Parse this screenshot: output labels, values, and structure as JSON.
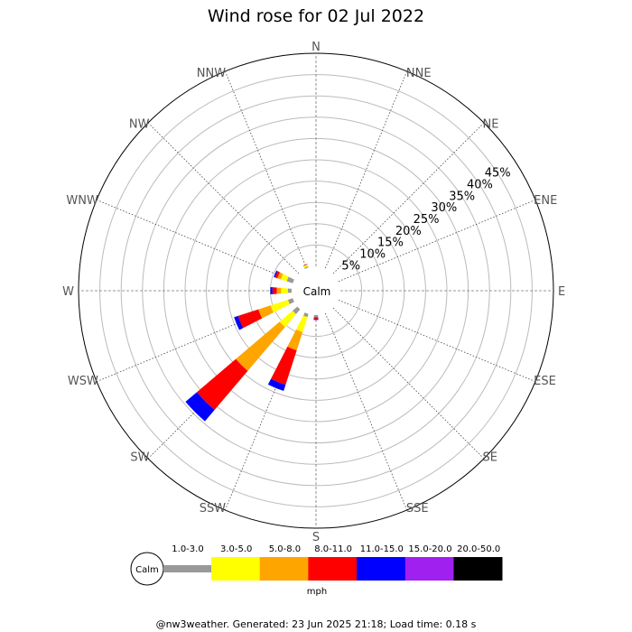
{
  "chart_data": {
    "type": "wind-rose",
    "title": "Wind rose for 02 Jul 2022",
    "directions": [
      "N",
      "NNE",
      "NE",
      "ENE",
      "E",
      "ESE",
      "SE",
      "SSE",
      "S",
      "SSW",
      "SW",
      "WSW",
      "W",
      "WNW",
      "NW",
      "NNW"
    ],
    "radial_ticks": [
      "5%",
      "10%",
      "15%",
      "20%",
      "25%",
      "30%",
      "35%",
      "40%",
      "45%"
    ],
    "radial_tick_values": [
      5,
      10,
      15,
      20,
      25,
      30,
      35,
      40,
      45
    ],
    "rmax": 50,
    "center_label": "Calm",
    "speed_bins": [
      "1.0-3.0",
      "3.0-5.0",
      "5.0-8.0",
      "8.0-11.0",
      "11.0-15.0",
      "15.0-20.0",
      "20.0-50.0"
    ],
    "colors": [
      "#999999",
      "#ffff00",
      "#ffa500",
      "#ff0000",
      "#0000ff",
      "#a020f0",
      "#000000"
    ],
    "unit": "mph",
    "series": [
      {
        "dir": "NNW",
        "cumulative": [
          0.3,
          0.7,
          0.8,
          0.9,
          0.9,
          0.9,
          0.9
        ]
      },
      {
        "dir": "WNW",
        "cumulative": [
          1.5,
          3.0,
          3.8,
          4.4,
          4.7,
          4.7,
          4.7
        ]
      },
      {
        "dir": "W",
        "cumulative": [
          0.9,
          2.5,
          3.5,
          4.5,
          5.0,
          5.0,
          5.0
        ]
      },
      {
        "dir": "WSW",
        "cumulative": [
          1.2,
          5.5,
          8.5,
          13.5,
          14.5,
          14.5,
          14.5
        ]
      },
      {
        "dir": "SW",
        "cumulative": [
          1.5,
          5.5,
          19.0,
          31.0,
          34.5,
          34.5,
          34.5
        ]
      },
      {
        "dir": "SSW",
        "cumulative": [
          0.8,
          4.5,
          9.0,
          17.5,
          19.0,
          19.0,
          19.0
        ]
      },
      {
        "dir": "S",
        "cumulative": [
          0.5,
          0.5,
          0.5,
          0.9,
          1.1,
          1.2,
          1.2
        ]
      }
    ]
  },
  "legend": {
    "calm_label": "Calm",
    "unit_label": "mph"
  },
  "footer": "@nw3weather. Generated: 23 Jun 2025 21:18; Load time: 0.18 s"
}
